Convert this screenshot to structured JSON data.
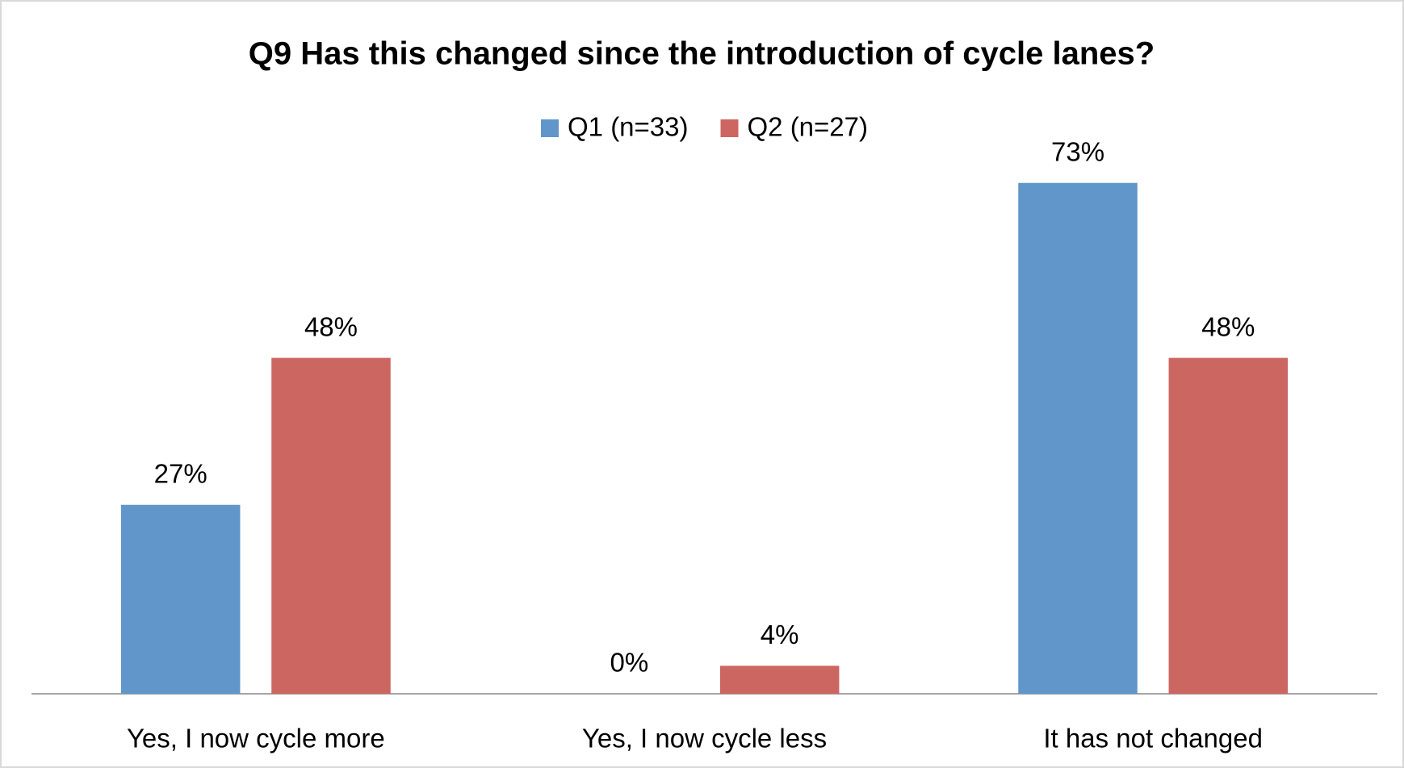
{
  "chart_data": {
    "type": "bar",
    "title": "Q9 Has this changed since the introduction of cycle lanes?",
    "categories": [
      "Yes, I now cycle more",
      "Yes, I now cycle less",
      "It has not changed"
    ],
    "series": [
      {
        "name": "Q1 (n=33)",
        "color": "#6096c9",
        "values": [
          27,
          0,
          73
        ],
        "value_labels": [
          "27%",
          "0%",
          "73%"
        ]
      },
      {
        "name": "Q2 (n=27)",
        "color": "#cc6660",
        "values": [
          48,
          4,
          48
        ],
        "value_labels": [
          "48%",
          "4%",
          "48%"
        ]
      }
    ],
    "ylim": [
      0,
      80
    ],
    "legend": "top"
  }
}
